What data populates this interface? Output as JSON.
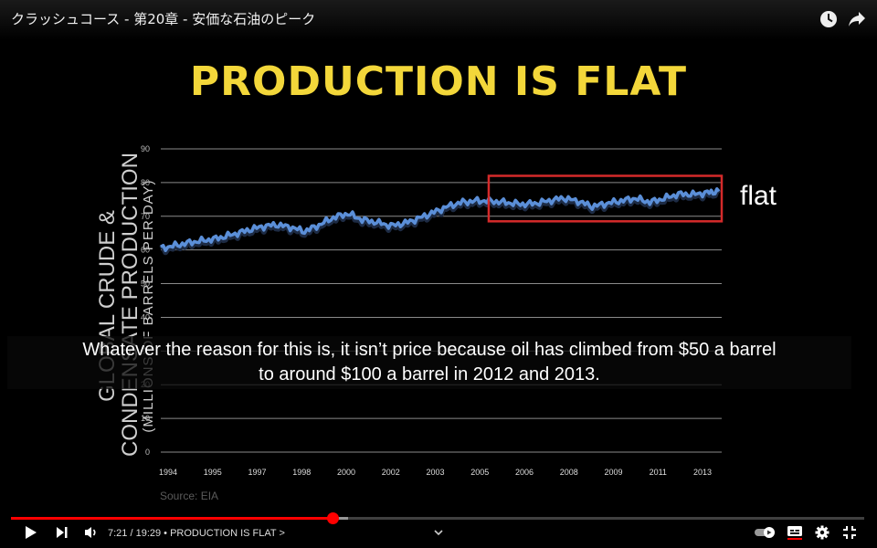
{
  "player": {
    "video_title": "クラッシュコース - 第20章 - 安価な石油のピーク",
    "time_display": "7:21 / 19:29",
    "chapter_label": "• PRODUCTION IS FLAT >",
    "progress_fraction": 0.377,
    "loaded_fraction": 0.395,
    "caption_lines": [
      "Whatever the reason for this is, it isn’t price because oil has climbed from $50 a barrel",
      "to around $100 a barrel in 2012 and 2013."
    ],
    "icons": {
      "top": [
        "watch-later-icon",
        "share-icon"
      ],
      "bottom_left": [
        "play-icon",
        "next-icon",
        "volume-icon"
      ],
      "bottom_right": [
        "autoplay-toggle-icon",
        "captions-icon",
        "settings-icon",
        "exit-fullscreen-icon"
      ],
      "center": "chevron-down-icon"
    },
    "accent_color": "#ff0000"
  },
  "slide": {
    "title": "PRODUCTION IS FLAT",
    "ylabel_line1": "GLOBAL CRUDE &",
    "ylabel_line2": "CONDENSATE PRODUCTION",
    "ylabel_line3": "(MILLIONS OF BARRELS PER DAY)",
    "annotation": "flat",
    "source": "Source: EIA",
    "title_color": "#f3d73a",
    "highlight_color": "#d42a2a",
    "line_color": "#5b8fd8"
  },
  "chart_data": {
    "type": "line",
    "title": "PRODUCTION IS FLAT",
    "ylabel": "GLOBAL CRUDE & CONDENSATE PRODUCTION (MILLIONS OF BARRELS PER DAY)",
    "xlabel": "",
    "xlim": [
      1994,
      2013.5
    ],
    "ylim": [
      0,
      90
    ],
    "y_ticks": [
      0,
      10,
      20,
      30,
      40,
      50,
      60,
      70,
      80,
      90
    ],
    "x_tick_labels": [
      "1994",
      "1995",
      "1997",
      "1998",
      "2000",
      "2002",
      "2003",
      "2005",
      "2006",
      "2008",
      "2009",
      "2011",
      "2013"
    ],
    "grid": true,
    "highlight": {
      "x_range": [
        2005.4,
        2013.5
      ],
      "y_range": [
        68.5,
        82
      ],
      "label": "flat"
    },
    "series": [
      {
        "x": [
          1994.0,
          1994.5,
          1995.0,
          1995.5,
          1996.0,
          1996.5,
          1997.0,
          1997.5,
          1998.0,
          1998.5,
          1999.0,
          1999.5,
          2000.0,
          2000.5,
          2001.0,
          2001.5,
          2002.0,
          2002.5,
          2003.0,
          2003.5,
          2004.0,
          2004.5,
          2005.0,
          2005.5,
          2006.0,
          2006.5,
          2007.0,
          2007.5,
          2008.0,
          2008.5,
          2009.0,
          2009.5,
          2010.0,
          2010.5,
          2011.0,
          2011.5,
          2012.0,
          2012.5,
          2013.0,
          2013.4
        ],
        "y": [
          60.5,
          61.3,
          62.2,
          62.8,
          63.5,
          64.6,
          65.8,
          66.9,
          67.5,
          66.8,
          65.5,
          67.4,
          69.6,
          70.8,
          69.0,
          68.2,
          67.2,
          68.0,
          69.5,
          71.2,
          73.0,
          74.2,
          74.6,
          74.5,
          74.1,
          73.6,
          73.8,
          74.6,
          75.4,
          74.5,
          72.9,
          73.8,
          74.6,
          75.3,
          74.2,
          75.3,
          76.6,
          76.5,
          77.0,
          77.4
        ]
      }
    ]
  }
}
